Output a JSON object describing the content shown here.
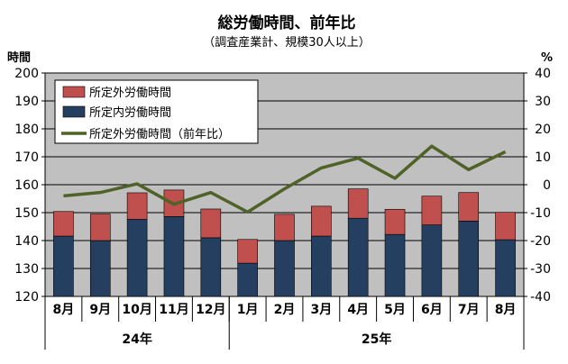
{
  "chart_data": {
    "type": "bar",
    "title": "総労働時間、前年比",
    "subtitle": "（調査産業計、規模30人以上）",
    "ylabel_left": "時間",
    "ylabel_right": "%",
    "ylim_left": [
      120,
      200
    ],
    "yticks_left": [
      120,
      130,
      140,
      150,
      160,
      170,
      180,
      190,
      200
    ],
    "ylim_right": [
      -40,
      40
    ],
    "yticks_right": [
      -40,
      -30,
      -20,
      -10,
      0,
      10,
      20,
      30,
      40
    ],
    "categories": [
      "8月",
      "9月",
      "10月",
      "11月",
      "12月",
      "1月",
      "2月",
      "3月",
      "4月",
      "5月",
      "6月",
      "7月",
      "8月"
    ],
    "year_groups": [
      {
        "label": "24年",
        "from": 0,
        "to": 4
      },
      {
        "label": "25年",
        "from": 5,
        "to": 12
      }
    ],
    "grid": true,
    "legend_position": "top-left",
    "series": [
      {
        "name": "所定内労働時間",
        "type": "bar",
        "axis": "left",
        "color": "#243F60",
        "values": [
          141.6,
          140.0,
          147.6,
          148.6,
          141.0,
          131.9,
          140.0,
          141.6,
          148.0,
          142.2,
          145.6,
          147.0,
          140.3
        ]
      },
      {
        "name": "所定外労働時間",
        "type": "bar",
        "axis": "left",
        "color": "#C0504D",
        "values": [
          8.8,
          9.5,
          9.5,
          9.5,
          10.3,
          8.5,
          9.4,
          10.7,
          10.5,
          9.0,
          10.3,
          10.2,
          9.8
        ]
      },
      {
        "name": "所定外労働時間（前年比）",
        "type": "line",
        "axis": "right",
        "color": "#4F6228",
        "values": [
          -4.0,
          -2.8,
          0.3,
          -7.0,
          -2.8,
          -9.8,
          -1.5,
          6.0,
          9.5,
          2.3,
          13.8,
          5.4,
          11.8
        ]
      }
    ]
  }
}
